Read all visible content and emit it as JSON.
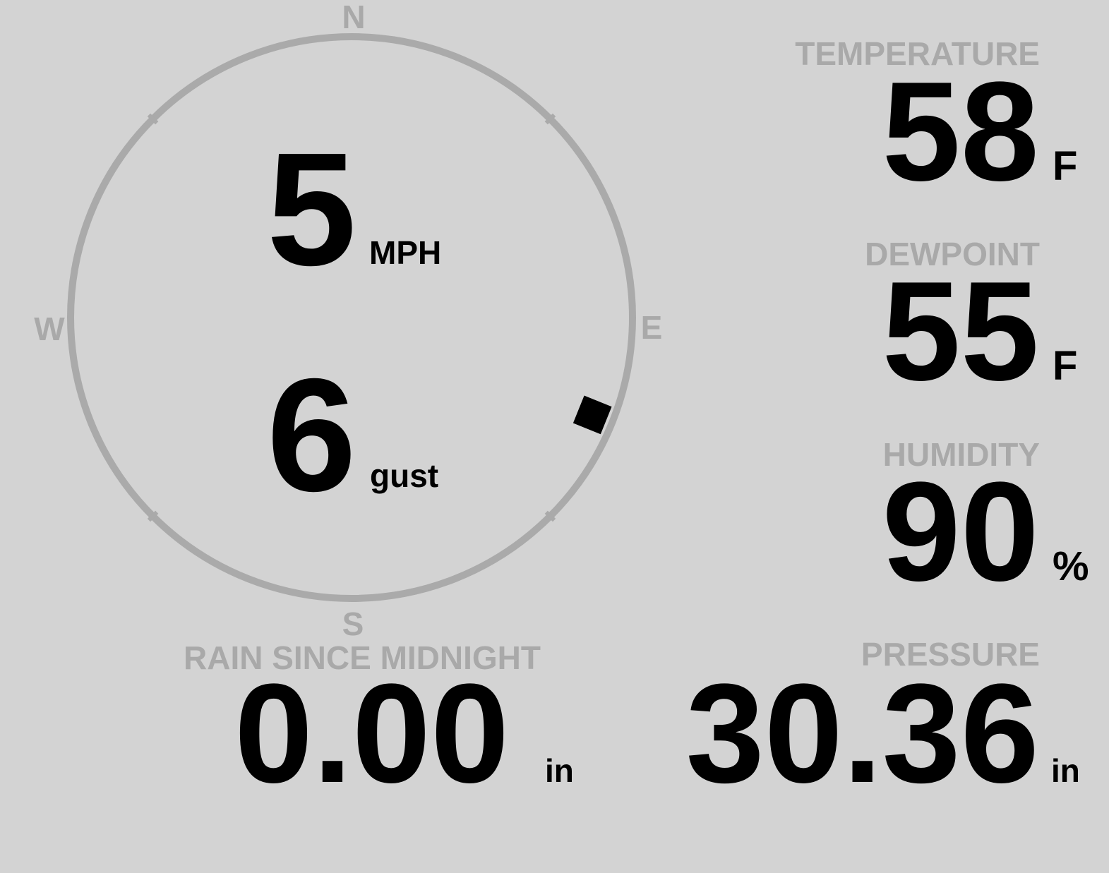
{
  "colors": {
    "background": "#d3d3d3",
    "label": "#a9a9a9",
    "value": "#000000",
    "ring": "#aaaaaa"
  },
  "compass": {
    "north": "N",
    "south": "S",
    "east": "E",
    "west": "W",
    "wind_direction_deg": 112
  },
  "wind": {
    "speed": "5",
    "speed_unit": "MPH",
    "gust": "6",
    "gust_unit": "gust"
  },
  "temperature": {
    "label": "TEMPERATURE",
    "value": "58",
    "unit": "F"
  },
  "dewpoint": {
    "label": "DEWPOINT",
    "value": "55",
    "unit": "F"
  },
  "humidity": {
    "label": "HUMIDITY",
    "value": "90",
    "unit": "%"
  },
  "rain": {
    "label": "RAIN SINCE MIDNIGHT",
    "value": "0.00",
    "unit": "in"
  },
  "pressure": {
    "label": "PRESSURE",
    "value": "30.36",
    "unit": "in"
  }
}
